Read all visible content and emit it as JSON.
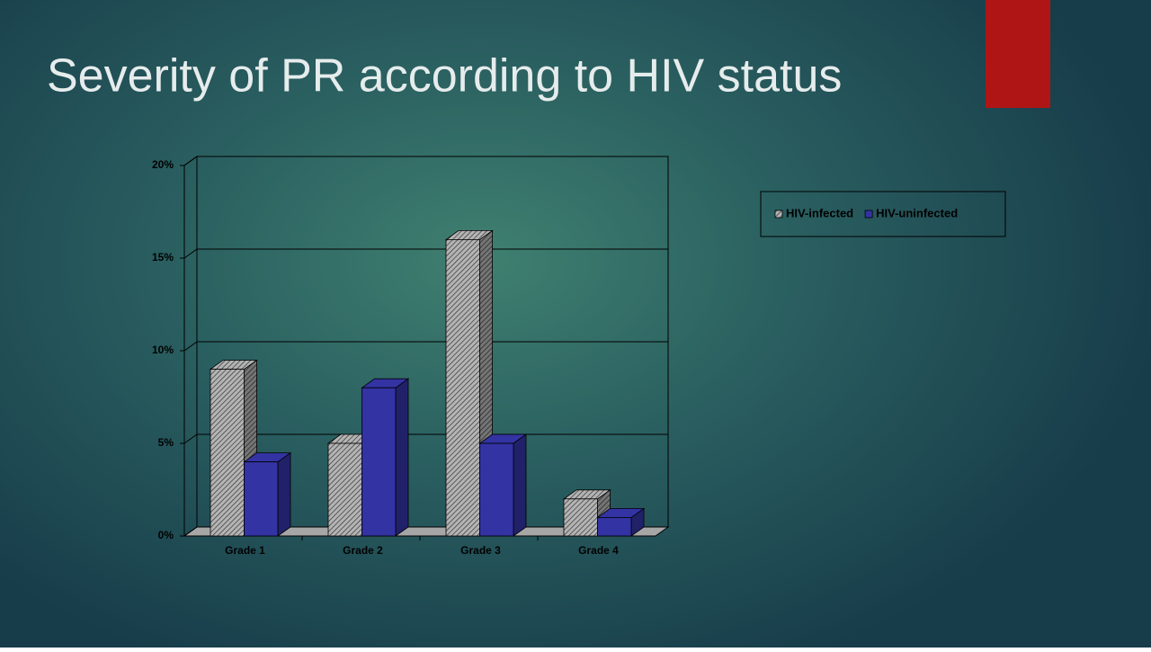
{
  "chart_data": {
    "type": "bar3d",
    "title": "Severity of PR according to HIV status",
    "categories": [
      "Grade 1",
      "Grade 2",
      "Grade 3",
      "Grade 4"
    ],
    "series": [
      {
        "name": "HIV-infected",
        "color": "#b4b4b4",
        "hatch": true,
        "values": [
          9,
          5,
          16,
          2
        ]
      },
      {
        "name": "HIV-uninfected",
        "color": "#3333a3",
        "hatch": false,
        "values": [
          4,
          8,
          5,
          1
        ]
      }
    ],
    "ylim": [
      0,
      20
    ],
    "yticks": [
      {
        "value": 0,
        "label": "0%"
      },
      {
        "value": 5,
        "label": "5%"
      },
      {
        "value": 10,
        "label": "10%"
      },
      {
        "value": 15,
        "label": "15%"
      },
      {
        "value": 20,
        "label": "20%"
      }
    ],
    "grid": true,
    "legend": true
  }
}
